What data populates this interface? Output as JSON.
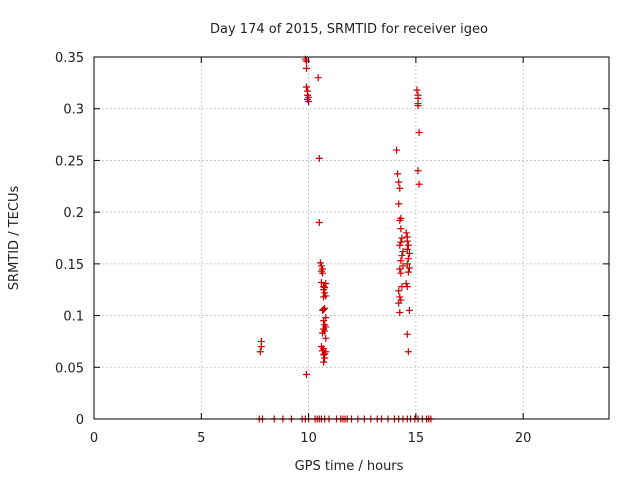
{
  "chart_data": {
    "type": "scatter",
    "title": "Day 174 of 2015, SRMTID for receiver igeo",
    "xlabel": "GPS time / hours",
    "ylabel": "SRMTID / TECUs",
    "xlim": [
      0,
      24
    ],
    "ylim": [
      0,
      0.35
    ],
    "xticks": [
      0,
      5,
      10,
      15,
      20
    ],
    "xtick_labels": [
      "0",
      "5",
      "10",
      "15",
      "20"
    ],
    "yticks": [
      0,
      0.05,
      0.1,
      0.15,
      0.2,
      0.25,
      0.3,
      0.35
    ],
    "ytick_labels": [
      "0",
      "0.05",
      "0.1",
      "0.15",
      "0.2",
      "0.25",
      "0.3",
      "0.35"
    ],
    "grid": true,
    "marker": "+",
    "color": "#cc0000",
    "series": [
      {
        "name": "SRMTID",
        "x": [
          7.75,
          7.8,
          7.8,
          9.85,
          9.9,
          9.9,
          9.9,
          9.95,
          9.95,
          9.95,
          10.0,
          10.0,
          9.9,
          10.45,
          10.5,
          10.5,
          10.55,
          10.6,
          10.6,
          10.65,
          10.65,
          10.6,
          10.7,
          10.75,
          10.7,
          10.8,
          10.75,
          10.7,
          10.8,
          10.75,
          10.65,
          10.7,
          10.8,
          10.7,
          10.75,
          10.8,
          10.7,
          10.75,
          10.65,
          10.8,
          10.6,
          10.7,
          10.65,
          10.75,
          10.7,
          10.8,
          10.75,
          10.7,
          14.1,
          14.15,
          14.2,
          14.25,
          14.2,
          14.3,
          14.25,
          14.3,
          14.35,
          14.3,
          14.25,
          14.4,
          14.35,
          14.3,
          14.4,
          14.25,
          14.3,
          14.35,
          14.2,
          14.25,
          14.3,
          14.2,
          14.25,
          14.55,
          14.6,
          14.6,
          14.65,
          14.6,
          14.7,
          14.65,
          14.6,
          14.7,
          14.65,
          14.55,
          14.6,
          14.7,
          14.6,
          14.65,
          15.05,
          15.1,
          15.1,
          15.1,
          15.15,
          15.1,
          15.15,
          15.1,
          7.7,
          7.85,
          8.4,
          8.8,
          9.2,
          9.7,
          9.85,
          10.0,
          10.3,
          10.4,
          10.5,
          10.6,
          10.75,
          10.95,
          11.3,
          11.5,
          11.6,
          11.7,
          11.8,
          12.0,
          12.3,
          12.6,
          12.9,
          13.2,
          13.4,
          13.7,
          14.0,
          14.2,
          14.4,
          14.6,
          14.75,
          14.95,
          15.1,
          15.3,
          15.5,
          15.6,
          15.7
        ],
        "y": [
          0.065,
          0.075,
          0.07,
          0.348,
          0.346,
          0.339,
          0.321,
          0.317,
          0.313,
          0.309,
          0.307,
          0.311,
          0.043,
          0.33,
          0.252,
          0.19,
          0.151,
          0.148,
          0.143,
          0.145,
          0.141,
          0.132,
          0.128,
          0.127,
          0.125,
          0.131,
          0.122,
          0.118,
          0.119,
          0.107,
          0.105,
          0.106,
          0.098,
          0.095,
          0.091,
          0.089,
          0.087,
          0.085,
          0.083,
          0.078,
          0.07,
          0.068,
          0.066,
          0.063,
          0.062,
          0.065,
          0.059,
          0.055,
          0.26,
          0.237,
          0.229,
          0.223,
          0.208,
          0.194,
          0.192,
          0.184,
          0.175,
          0.171,
          0.168,
          0.162,
          0.158,
          0.153,
          0.148,
          0.145,
          0.141,
          0.128,
          0.124,
          0.118,
          0.115,
          0.112,
          0.103,
          0.18,
          0.176,
          0.172,
          0.168,
          0.164,
          0.16,
          0.155,
          0.15,
          0.146,
          0.142,
          0.131,
          0.128,
          0.105,
          0.082,
          0.065,
          0.318,
          0.313,
          0.31,
          0.305,
          0.277,
          0.24,
          0.227,
          0.303,
          0,
          0,
          0,
          0,
          0,
          0,
          0,
          0,
          0,
          0,
          0,
          0,
          0,
          0,
          0,
          0,
          0,
          0,
          0,
          0,
          0,
          0,
          0,
          0,
          0,
          0,
          0,
          0,
          0,
          0,
          0,
          0,
          0,
          0,
          0,
          0,
          0
        ]
      }
    ]
  }
}
